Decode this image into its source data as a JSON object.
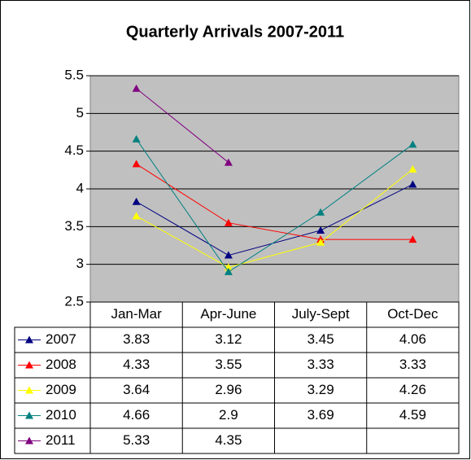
{
  "chart_data": {
    "type": "line",
    "title": "Quarterly Arrivals 2007-2011",
    "categories": [
      "Jan-Mar",
      "Apr-June",
      "July-Sept",
      "Oct-Dec"
    ],
    "series": [
      {
        "name": "2007",
        "color": "#000080",
        "values": [
          3.83,
          3.12,
          3.45,
          4.06
        ]
      },
      {
        "name": "2008",
        "color": "#ff0000",
        "values": [
          4.33,
          3.55,
          3.33,
          3.33
        ]
      },
      {
        "name": "2009",
        "color": "#ffff00",
        "values": [
          3.64,
          2.96,
          3.29,
          4.26
        ]
      },
      {
        "name": "2010",
        "color": "#008080",
        "values": [
          4.66,
          2.9,
          3.69,
          4.59
        ]
      },
      {
        "name": "2011",
        "color": "#800080",
        "values": [
          5.33,
          4.35,
          null,
          null
        ]
      }
    ],
    "ylim": [
      2.5,
      5.5
    ],
    "yticks": [
      2.5,
      3,
      3.5,
      4,
      4.5,
      5,
      5.5
    ],
    "grid": true,
    "data_table": true
  }
}
